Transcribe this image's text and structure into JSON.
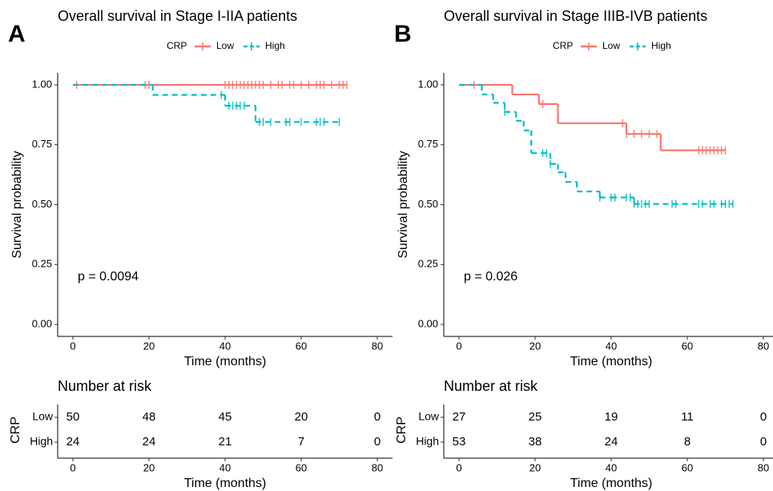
{
  "chart_data": [
    {
      "type": "survival",
      "panel_label": "A",
      "title": "Overall survival in Stage I-IIA patients",
      "legend_title": "CRP",
      "x_label": "Time (months)",
      "y_label": "Survival probability",
      "annotation": "p = 0.0094",
      "xlim": [
        -4,
        84
      ],
      "ylim": [
        -0.05,
        1.05
      ],
      "xticks": [
        0,
        20,
        40,
        60,
        80
      ],
      "yticks": [
        {
          "value": 0,
          "label": "0.00"
        },
        {
          "value": 0.25,
          "label": "0.25"
        },
        {
          "value": 0.5,
          "label": "0.50"
        },
        {
          "value": 0.75,
          "label": "0.75"
        },
        {
          "value": 1,
          "label": "1.00"
        }
      ],
      "series": [
        {
          "name": "Low",
          "color": "#F8766D",
          "line_style": "solid",
          "x": [
            0,
            72
          ],
          "values": [
            1,
            1
          ],
          "censor_x": [
            1,
            19,
            20,
            40,
            41,
            42,
            43,
            44,
            45,
            46,
            47,
            48,
            49,
            50,
            52,
            54,
            55,
            57,
            58,
            60,
            62,
            64,
            65,
            66,
            68,
            70,
            71,
            72
          ]
        },
        {
          "name": "High",
          "color": "#00BFC4",
          "line_style": "dashed",
          "x": [
            0,
            21,
            40,
            48,
            70
          ],
          "values": [
            1,
            0.958,
            0.913,
            0.845,
            0.845
          ],
          "censor_x": [
            39,
            41,
            42,
            43,
            44,
            45,
            49,
            50,
            52,
            56,
            57,
            60,
            64,
            65,
            66,
            70
          ]
        }
      ],
      "risk_table": {
        "title": "Number at risk",
        "y_label": "CRP",
        "x_label": "Time (months)",
        "xticks": [
          0,
          20,
          40,
          60,
          80
        ],
        "series": [
          {
            "name": "Low",
            "color": "#F8766D",
            "values": [
              50,
              48,
              45,
              20,
              0
            ]
          },
          {
            "name": "High",
            "color": "#00BFC4",
            "values": [
              24,
              24,
              21,
              7,
              0
            ]
          }
        ]
      }
    },
    {
      "type": "survival",
      "panel_label": "B",
      "title": "Overall survival in Stage IIIB-IVB patients",
      "legend_title": "CRP",
      "x_label": "Time (months)",
      "y_label": "Survival probability",
      "annotation": "p = 0.026",
      "xlim": [
        -4,
        84
      ],
      "ylim": [
        -0.05,
        1.05
      ],
      "xticks": [
        0,
        20,
        40,
        60,
        80
      ],
      "yticks": [
        {
          "value": 0,
          "label": "0.00"
        },
        {
          "value": 0.25,
          "label": "0.25"
        },
        {
          "value": 0.5,
          "label": "0.50"
        },
        {
          "value": 0.75,
          "label": "0.75"
        },
        {
          "value": 1,
          "label": "1.00"
        }
      ],
      "series": [
        {
          "name": "Low",
          "color": "#F8766D",
          "line_style": "solid",
          "x": [
            0,
            14,
            21,
            26,
            44,
            53,
            70
          ],
          "values": [
            1,
            0.96,
            0.92,
            0.84,
            0.795,
            0.727,
            0.727
          ],
          "censor_x": [
            4,
            22,
            43,
            44,
            46,
            48,
            50,
            52,
            63,
            64,
            65,
            66,
            67,
            68,
            69,
            70
          ]
        },
        {
          "name": "High",
          "color": "#00BFC4",
          "line_style": "dashed",
          "x": [
            0,
            6,
            9,
            12,
            15,
            17,
            19,
            24,
            26,
            28,
            31,
            37,
            40,
            46,
            72
          ],
          "values": [
            1,
            0.96,
            0.925,
            0.887,
            0.85,
            0.81,
            0.715,
            0.67,
            0.635,
            0.595,
            0.555,
            0.53,
            0.53,
            0.503,
            0.503
          ],
          "censor_x": [
            12,
            22,
            23,
            24,
            37,
            40,
            41,
            44,
            45,
            46,
            47,
            48,
            49,
            50,
            56,
            57,
            63,
            64,
            66,
            67,
            69,
            70,
            71,
            72
          ]
        }
      ],
      "risk_table": {
        "title": "Number at risk",
        "y_label": "CRP",
        "x_label": "Time (months)",
        "xticks": [
          0,
          20,
          40,
          60,
          80
        ],
        "series": [
          {
            "name": "Low",
            "color": "#F8766D",
            "values": [
              27,
              25,
              19,
              11,
              0
            ]
          },
          {
            "name": "High",
            "color": "#00BFC4",
            "values": [
              53,
              38,
              24,
              8,
              0
            ]
          }
        ]
      }
    }
  ]
}
